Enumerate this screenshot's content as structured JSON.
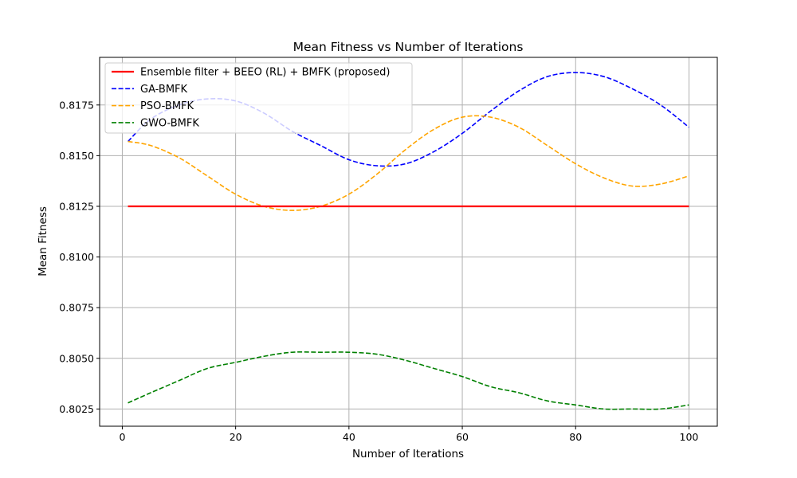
{
  "chart_data": {
    "type": "line",
    "title": "Mean Fitness vs Number of Iterations",
    "xlabel": "Number of Iterations",
    "ylabel": "Mean Fitness",
    "xlim": [
      -4,
      105
    ],
    "ylim": [
      0.80165,
      0.81985
    ],
    "xticks": [
      0,
      20,
      40,
      60,
      80,
      100
    ],
    "xtick_labels": [
      "0",
      "20",
      "40",
      "60",
      "80",
      "100"
    ],
    "yticks": [
      0.8025,
      0.805,
      0.8075,
      0.81,
      0.8125,
      0.815,
      0.8175
    ],
    "ytick_labels": [
      "0.8025",
      "0.8050",
      "0.8075",
      "0.8100",
      "0.8125",
      "0.8150",
      "0.8175"
    ],
    "grid": true,
    "legend_position": "top-left",
    "x": [
      1,
      5,
      10,
      15,
      20,
      25,
      30,
      35,
      40,
      45,
      50,
      55,
      60,
      65,
      70,
      75,
      80,
      85,
      90,
      95,
      100
    ],
    "series": [
      {
        "name": "Ensemble filter + BEEO (RL) + BMFK (proposed)",
        "color": "#ff0000",
        "style": "solid",
        "values": [
          0.8125,
          0.8125,
          0.8125,
          0.8125,
          0.8125,
          0.8125,
          0.8125,
          0.8125,
          0.8125,
          0.8125,
          0.8125,
          0.8125,
          0.8125,
          0.8125,
          0.8125,
          0.8125,
          0.8125,
          0.8125,
          0.8125,
          0.8125,
          0.8125
        ]
      },
      {
        "name": "GA-BMFK",
        "color": "#0000ff",
        "style": "dashed",
        "values": [
          0.8157,
          0.8168,
          0.8175,
          0.8178,
          0.8177,
          0.8171,
          0.8162,
          0.8155,
          0.8148,
          0.8145,
          0.8146,
          0.8152,
          0.8161,
          0.8172,
          0.8182,
          0.8189,
          0.8191,
          0.8189,
          0.8183,
          0.8175,
          0.8164
        ]
      },
      {
        "name": "PSO-BMFK",
        "color": "#ffa500",
        "style": "dashed",
        "values": [
          0.8157,
          0.8155,
          0.8149,
          0.814,
          0.8131,
          0.8125,
          0.8123,
          0.8125,
          0.8131,
          0.8141,
          0.8153,
          0.8163,
          0.8169,
          0.8169,
          0.8164,
          0.8155,
          0.8146,
          0.8139,
          0.8135,
          0.8136,
          0.814
        ]
      },
      {
        "name": "GWO-BMFK",
        "color": "#008000",
        "style": "dashed",
        "values": [
          0.8028,
          0.8033,
          0.8039,
          0.8045,
          0.8048,
          0.8051,
          0.8053,
          0.8053,
          0.8053,
          0.8052,
          0.8049,
          0.8045,
          0.8041,
          0.8036,
          0.8033,
          0.8029,
          0.8027,
          0.8025,
          0.8025,
          0.8025,
          0.8027
        ]
      }
    ]
  }
}
